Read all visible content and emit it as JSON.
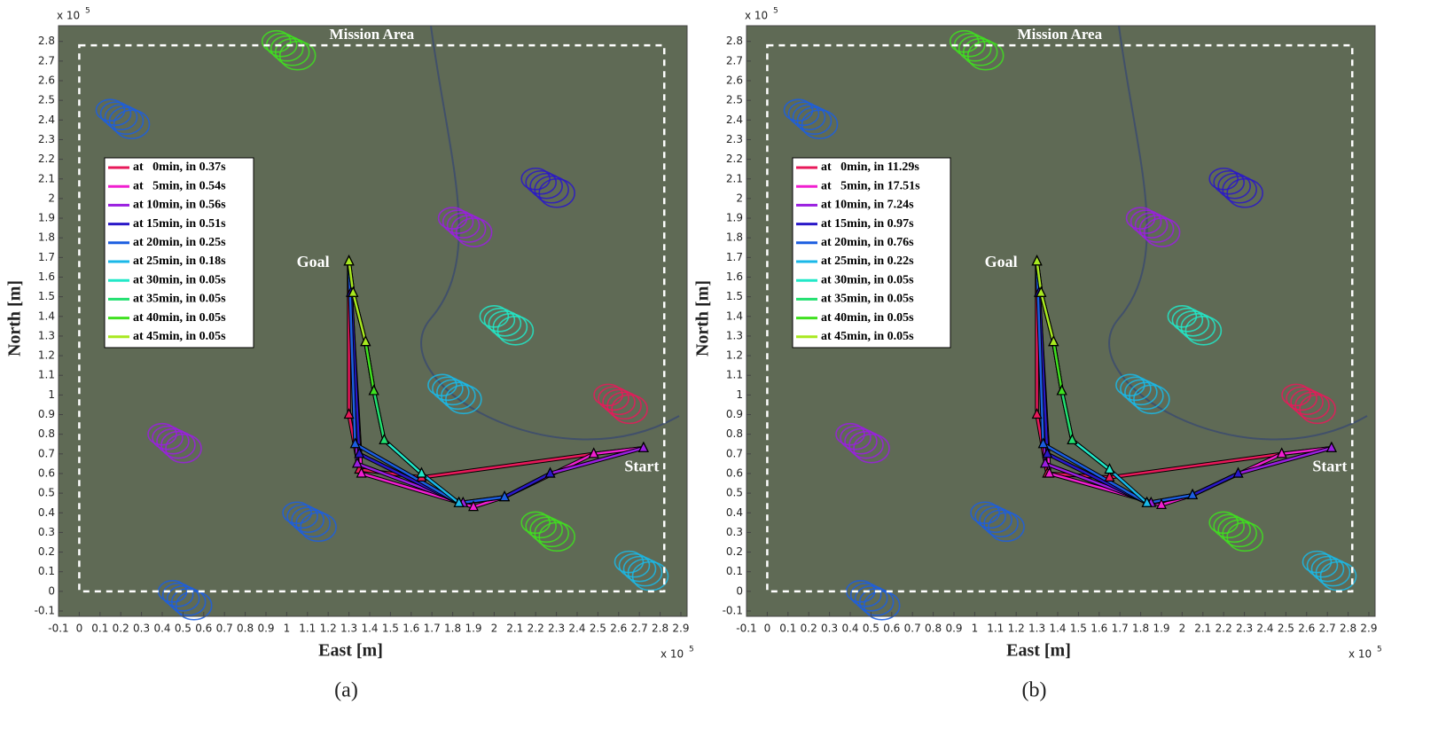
{
  "chart_data": [
    {
      "type": "line",
      "subtitle": "(a)",
      "xlabel": "East [m]",
      "ylabel": "North [m]",
      "multiplier": {
        "base": "x 10",
        "exponent": "5"
      },
      "xlim": [
        -0.1,
        2.93
      ],
      "ylim": [
        -0.1,
        2.88
      ],
      "xticks": [
        -0.1,
        0,
        0.1,
        0.2,
        0.3,
        0.4,
        0.5,
        0.6,
        0.7,
        0.8,
        0.9,
        1,
        1.1,
        1.2,
        1.3,
        1.4,
        1.5,
        1.6,
        1.7,
        1.8,
        1.9,
        2,
        2.1,
        2.2,
        2.3,
        2.4,
        2.5,
        2.6,
        2.7,
        2.8,
        2.9
      ],
      "yticks": [
        -0.1,
        0,
        0.1,
        0.2,
        0.3,
        0.4,
        0.5,
        0.6,
        0.7,
        0.8,
        0.9,
        1,
        1.1,
        1.2,
        1.3,
        1.4,
        1.5,
        1.6,
        1.7,
        1.8,
        1.9,
        2,
        2.1,
        2.2,
        2.3,
        2.4,
        2.5,
        2.6,
        2.7,
        2.8
      ],
      "mission_area": {
        "label": "Mission Area",
        "x": [
          0,
          2.82
        ],
        "y": [
          0,
          2.78
        ]
      },
      "annotations": [
        {
          "text": "Goal",
          "x": 1.3,
          "y": 1.68
        },
        {
          "text": "Start",
          "x": 2.72,
          "y": 0.73
        }
      ],
      "series": [
        {
          "name": "at   0min, in 0.37s",
          "color": "#e8195a",
          "x": [
            2.72,
            2.48,
            1.65,
            1.35,
            1.3,
            1.3
          ],
          "y": [
            0.73,
            0.7,
            0.58,
            0.62,
            0.9,
            1.68
          ]
        },
        {
          "name": "at   5min, in 0.54s",
          "color": "#f01fd0",
          "x": [
            2.72,
            2.48,
            2.05,
            1.9,
            1.36,
            1.3
          ],
          "y": [
            0.73,
            0.7,
            0.48,
            0.43,
            0.6,
            1.68
          ]
        },
        {
          "name": "at 10min, in 0.56s",
          "color": "#9a1ee0",
          "x": [
            2.72,
            2.27,
            2.05,
            1.85,
            1.34,
            1.3
          ],
          "y": [
            0.73,
            0.6,
            0.48,
            0.45,
            0.65,
            1.68
          ]
        },
        {
          "name": "at 15min, in 0.51s",
          "color": "#2a18c8",
          "x": [
            2.27,
            2.05,
            1.83,
            1.35,
            1.31,
            1.3
          ],
          "y": [
            0.6,
            0.48,
            0.45,
            0.7,
            1.52,
            1.68
          ]
        },
        {
          "name": "at 20min, in 0.25s",
          "color": "#1c5ee0",
          "x": [
            2.05,
            1.83,
            1.33,
            1.3
          ],
          "y": [
            0.48,
            0.45,
            0.75,
            1.68
          ]
        },
        {
          "name": "at 25min, in 0.18s",
          "color": "#1ab8e8",
          "x": [
            1.83,
            1.65,
            1.47,
            1.42,
            1.38,
            1.32,
            1.3
          ],
          "y": [
            0.45,
            0.6,
            0.77,
            1.02,
            1.27,
            1.52,
            1.68
          ]
        },
        {
          "name": "at 30min, in 0.05s",
          "color": "#22e8c8",
          "x": [
            1.65,
            1.47,
            1.42,
            1.38
          ],
          "y": [
            0.6,
            0.77,
            1.02,
            1.27
          ]
        },
        {
          "name": "at 35min, in 0.05s",
          "color": "#22e070",
          "x": [
            1.47,
            1.42,
            1.38,
            1.32
          ],
          "y": [
            0.77,
            1.02,
            1.27,
            1.52
          ]
        },
        {
          "name": "at 40min, in 0.05s",
          "color": "#40e020",
          "x": [
            1.42,
            1.38,
            1.32,
            1.3
          ],
          "y": [
            1.02,
            1.27,
            1.52,
            1.68
          ]
        },
        {
          "name": "at 45min, in 0.05s",
          "color": "#a8e820",
          "x": [
            1.38,
            1.32,
            1.3
          ],
          "y": [
            1.27,
            1.52,
            1.68
          ]
        }
      ]
    },
    {
      "type": "line",
      "subtitle": "(b)",
      "xlabel": "East [m]",
      "ylabel": "North [m]",
      "multiplier": {
        "base": "x 10",
        "exponent": "5"
      },
      "xlim": [
        -0.1,
        2.93
      ],
      "ylim": [
        -0.1,
        2.88
      ],
      "xticks": [
        -0.1,
        0,
        0.1,
        0.2,
        0.3,
        0.4,
        0.5,
        0.6,
        0.7,
        0.8,
        0.9,
        1,
        1.1,
        1.2,
        1.3,
        1.4,
        1.5,
        1.6,
        1.7,
        1.8,
        1.9,
        2,
        2.1,
        2.2,
        2.3,
        2.4,
        2.5,
        2.6,
        2.7,
        2.8,
        2.9
      ],
      "yticks": [
        -0.1,
        0,
        0.1,
        0.2,
        0.3,
        0.4,
        0.5,
        0.6,
        0.7,
        0.8,
        0.9,
        1,
        1.1,
        1.2,
        1.3,
        1.4,
        1.5,
        1.6,
        1.7,
        1.8,
        1.9,
        2,
        2.1,
        2.2,
        2.3,
        2.4,
        2.5,
        2.6,
        2.7,
        2.8
      ],
      "mission_area": {
        "label": "Mission Area",
        "x": [
          0,
          2.82
        ],
        "y": [
          0,
          2.78
        ]
      },
      "annotations": [
        {
          "text": "Goal",
          "x": 1.3,
          "y": 1.68
        },
        {
          "text": "Start",
          "x": 2.72,
          "y": 0.73
        }
      ],
      "series": [
        {
          "name": "at   0min, in 11.29s",
          "color": "#e8195a",
          "x": [
            2.72,
            2.48,
            1.65,
            1.35,
            1.3,
            1.3
          ],
          "y": [
            0.73,
            0.7,
            0.58,
            0.6,
            0.9,
            1.68
          ]
        },
        {
          "name": "at   5min, in 17.51s",
          "color": "#f01fd0",
          "x": [
            2.72,
            2.48,
            2.05,
            1.9,
            1.36,
            1.3
          ],
          "y": [
            0.73,
            0.7,
            0.49,
            0.44,
            0.6,
            1.68
          ]
        },
        {
          "name": "at 10min, in 7.24s",
          "color": "#9a1ee0",
          "x": [
            2.72,
            2.27,
            2.05,
            1.85,
            1.34,
            1.3
          ],
          "y": [
            0.73,
            0.6,
            0.49,
            0.45,
            0.65,
            1.68
          ]
        },
        {
          "name": "at 15min, in 0.97s",
          "color": "#2a18c8",
          "x": [
            2.27,
            2.05,
            1.83,
            1.35,
            1.31,
            1.3
          ],
          "y": [
            0.6,
            0.49,
            0.45,
            0.7,
            1.52,
            1.68
          ]
        },
        {
          "name": "at 20min, in 0.76s",
          "color": "#1c5ee0",
          "x": [
            2.05,
            1.83,
            1.33,
            1.3
          ],
          "y": [
            0.49,
            0.45,
            0.75,
            1.68
          ]
        },
        {
          "name": "at 25min, in 0.22s",
          "color": "#1ab8e8",
          "x": [
            1.83,
            1.65,
            1.47,
            1.42,
            1.38,
            1.32,
            1.3
          ],
          "y": [
            0.45,
            0.62,
            0.77,
            1.02,
            1.27,
            1.52,
            1.68
          ]
        },
        {
          "name": "at 30min, in 0.05s",
          "color": "#22e8c8",
          "x": [
            1.65,
            1.47,
            1.42,
            1.38
          ],
          "y": [
            0.62,
            0.77,
            1.02,
            1.27
          ]
        },
        {
          "name": "at 35min, in 0.05s",
          "color": "#22e070",
          "x": [
            1.47,
            1.42,
            1.38,
            1.32
          ],
          "y": [
            0.77,
            1.02,
            1.27,
            1.52
          ]
        },
        {
          "name": "at 40min, in 0.05s",
          "color": "#40e020",
          "x": [
            1.42,
            1.38,
            1.32,
            1.3
          ],
          "y": [
            1.02,
            1.27,
            1.52,
            1.68
          ]
        },
        {
          "name": "at 45min, in 0.05s",
          "color": "#a8e820",
          "x": [
            1.38,
            1.32,
            1.3
          ],
          "y": [
            1.27,
            1.52,
            1.68
          ]
        }
      ]
    }
  ]
}
